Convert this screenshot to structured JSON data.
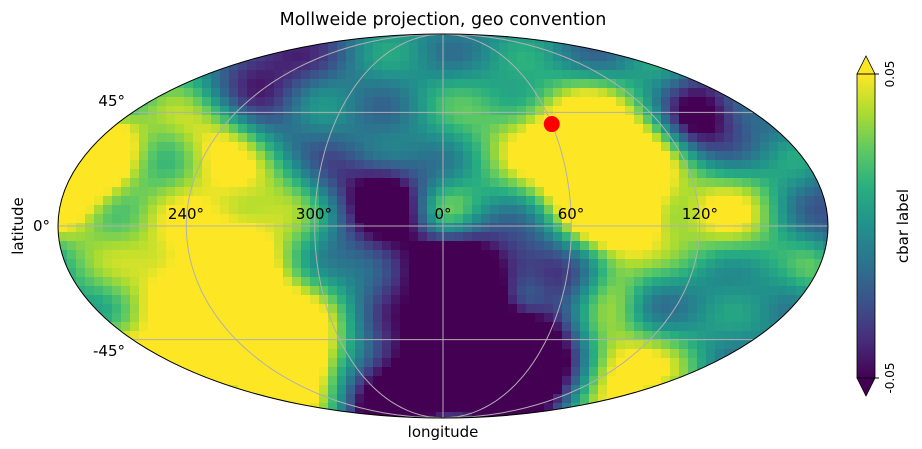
{
  "title": "Mollweide projection, geo convention",
  "xlabel": "longitude",
  "ylabel": "latitude",
  "lon_tick_labels": [
    "240°",
    "300°",
    "0°",
    "60°",
    "120°"
  ],
  "lat_tick_labels": [
    "45°",
    "0°",
    "-45°"
  ],
  "colorbar": {
    "label": "cbar label",
    "max_label": "0.05",
    "min_label": "-0.05",
    "colormap": "viridis",
    "extend": "both"
  },
  "marker": {
    "longitude": 60,
    "latitude": 40,
    "color": "#ff0000"
  },
  "grid": {
    "meridians_deg": [
      -120,
      -60,
      0,
      60,
      120
    ],
    "parallels_deg": [
      -45,
      45
    ],
    "color": "#b0b0b0"
  },
  "chart_data": {
    "type": "heatmap",
    "projection": "mollweide",
    "title": "Mollweide projection, geo convention",
    "xlabel": "longitude",
    "ylabel": "latitude",
    "x_tick_labels": [
      "240°",
      "300°",
      "0°",
      "60°",
      "120°"
    ],
    "y_tick_labels": [
      "45°",
      "0°",
      "-45°"
    ],
    "value_range": [
      -0.05,
      0.05
    ],
    "colormap": "viridis",
    "colorbar_label": "cbar label",
    "grid": true,
    "highlight_point": {
      "longitude": 60,
      "latitude": 40,
      "color": "red"
    }
  }
}
